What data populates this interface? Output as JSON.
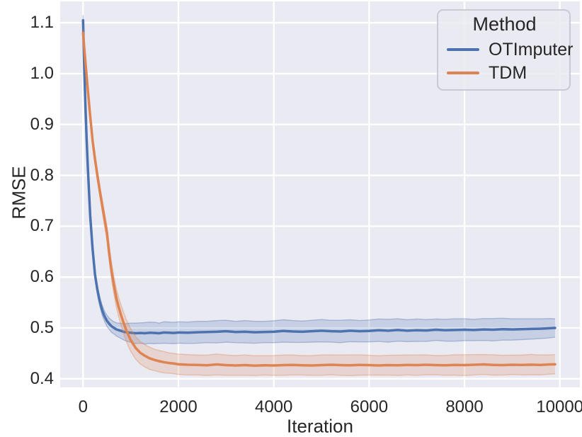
{
  "figure": {
    "background": "#ffffff",
    "plot_bg": "#eaeaf2",
    "grid_color": "#ffffff",
    "text_color": "#262626"
  },
  "legend": {
    "title": "Method",
    "items": [
      {
        "label": "OTImputer",
        "color": "#4c72b0"
      },
      {
        "label": "TDM",
        "color": "#dd8452"
      }
    ]
  },
  "chart_data": {
    "type": "line",
    "title": "",
    "xlabel": "Iteration",
    "ylabel": "RMSE",
    "xlim": [
      -480,
      10420
    ],
    "ylim": [
      0.383,
      1.142
    ],
    "grid": true,
    "legend_position": "upper right",
    "xticks": [
      0,
      2000,
      4000,
      6000,
      8000,
      10000
    ],
    "xtick_labels": [
      "0",
      "2000",
      "4000",
      "6000",
      "8000",
      "10000"
    ],
    "yticks": [
      0.4,
      0.5,
      0.6,
      0.7,
      0.8,
      0.9,
      1.0,
      1.1
    ],
    "ytick_labels": [
      "0.4",
      "0.5",
      "0.6",
      "0.7",
      "0.8",
      "0.9",
      "1.0",
      "1.1"
    ],
    "x": [
      0,
      25,
      50,
      75,
      100,
      150,
      200,
      250,
      300,
      350,
      400,
      450,
      500,
      550,
      600,
      650,
      700,
      750,
      800,
      850,
      900,
      950,
      1000,
      1100,
      1200,
      1300,
      1400,
      1500,
      1600,
      1700,
      1800,
      1900,
      2000,
      2200,
      2400,
      2600,
      2800,
      3000,
      3200,
      3400,
      3600,
      3800,
      4000,
      4200,
      4400,
      4600,
      4800,
      5000,
      5200,
      5400,
      5600,
      5800,
      6000,
      6200,
      6400,
      6600,
      6800,
      7000,
      7200,
      7400,
      7600,
      7800,
      8000,
      8200,
      8400,
      8600,
      8800,
      9000,
      9200,
      9400,
      9600,
      9800,
      9900
    ],
    "series": [
      {
        "name": "OTImputer",
        "color": "#4c72b0",
        "values": [
          1.105,
          1.01,
          0.935,
          0.87,
          0.815,
          0.72,
          0.655,
          0.605,
          0.575,
          0.552,
          0.535,
          0.523,
          0.514,
          0.508,
          0.503,
          0.5,
          0.497,
          0.4955,
          0.494,
          0.4925,
          0.4915,
          0.491,
          0.4905,
          0.4895,
          0.49,
          0.4895,
          0.4905,
          0.49,
          0.4895,
          0.491,
          0.4905,
          0.49,
          0.491,
          0.4905,
          0.4915,
          0.492,
          0.4925,
          0.4935,
          0.492,
          0.4925,
          0.4915,
          0.492,
          0.4925,
          0.494,
          0.493,
          0.4925,
          0.4935,
          0.4945,
          0.4935,
          0.493,
          0.4945,
          0.4935,
          0.494,
          0.4955,
          0.4945,
          0.496,
          0.4945,
          0.4955,
          0.495,
          0.4965,
          0.4955,
          0.496,
          0.4965,
          0.496,
          0.497,
          0.4965,
          0.4975,
          0.497,
          0.4975,
          0.498,
          0.4985,
          0.4995,
          0.5
        ],
        "band_halfwidth": [
          0.01,
          0.009,
          0.008,
          0.008,
          0.008,
          0.008,
          0.008,
          0.009,
          0.009,
          0.009,
          0.01,
          0.01,
          0.011,
          0.011,
          0.012,
          0.012,
          0.013,
          0.014,
          0.015,
          0.016,
          0.017,
          0.018,
          0.019,
          0.02,
          0.02,
          0.021,
          0.021,
          0.021,
          0.02,
          0.021,
          0.021,
          0.021,
          0.021,
          0.021,
          0.0215,
          0.021,
          0.022,
          0.0215,
          0.021,
          0.022,
          0.0215,
          0.021,
          0.0215,
          0.022,
          0.0215,
          0.021,
          0.0215,
          0.022,
          0.0215,
          0.022,
          0.0215,
          0.021,
          0.0215,
          0.022,
          0.0225,
          0.022,
          0.0215,
          0.022,
          0.0215,
          0.021,
          0.0215,
          0.022,
          0.0215,
          0.021,
          0.0215,
          0.022,
          0.0215,
          0.021,
          0.0205,
          0.02,
          0.0195,
          0.019,
          0.018
        ]
      },
      {
        "name": "TDM",
        "color": "#dd8452",
        "values": [
          1.08,
          1.05,
          1.022,
          0.995,
          0.968,
          0.916,
          0.868,
          0.832,
          0.8,
          0.77,
          0.742,
          0.714,
          0.687,
          0.645,
          0.61,
          0.582,
          0.558,
          0.54,
          0.524,
          0.51,
          0.497,
          0.486,
          0.476,
          0.461,
          0.451,
          0.445,
          0.44,
          0.437,
          0.4345,
          0.4325,
          0.431,
          0.43,
          0.4285,
          0.4275,
          0.4272,
          0.4265,
          0.4282,
          0.4268,
          0.4262,
          0.4268,
          0.4258,
          0.4265,
          0.4262,
          0.4268,
          0.4272,
          0.4265,
          0.4262,
          0.4268,
          0.4275,
          0.4268,
          0.4265,
          0.4272,
          0.4268,
          0.4262,
          0.4268,
          0.4265,
          0.4272,
          0.4268,
          0.4275,
          0.4268,
          0.4265,
          0.4272,
          0.4268,
          0.4275,
          0.4282,
          0.4272,
          0.4268,
          0.4275,
          0.4272,
          0.4278,
          0.4272,
          0.4282,
          0.4285
        ],
        "band_halfwidth": [
          0.008,
          0.008,
          0.008,
          0.008,
          0.009,
          0.009,
          0.01,
          0.01,
          0.011,
          0.011,
          0.012,
          0.013,
          0.014,
          0.015,
          0.016,
          0.017,
          0.018,
          0.019,
          0.02,
          0.021,
          0.021,
          0.022,
          0.022,
          0.022,
          0.022,
          0.022,
          0.022,
          0.021,
          0.021,
          0.021,
          0.02,
          0.02,
          0.02,
          0.02,
          0.0195,
          0.02,
          0.0205,
          0.02,
          0.0195,
          0.02,
          0.0195,
          0.019,
          0.0195,
          0.02,
          0.0195,
          0.019,
          0.0195,
          0.02,
          0.0195,
          0.02,
          0.0205,
          0.02,
          0.0195,
          0.019,
          0.0195,
          0.02,
          0.0195,
          0.02,
          0.0195,
          0.019,
          0.0195,
          0.02,
          0.0205,
          0.02,
          0.0195,
          0.02,
          0.0195,
          0.019,
          0.0195,
          0.02,
          0.0195,
          0.019,
          0.019
        ]
      }
    ]
  }
}
